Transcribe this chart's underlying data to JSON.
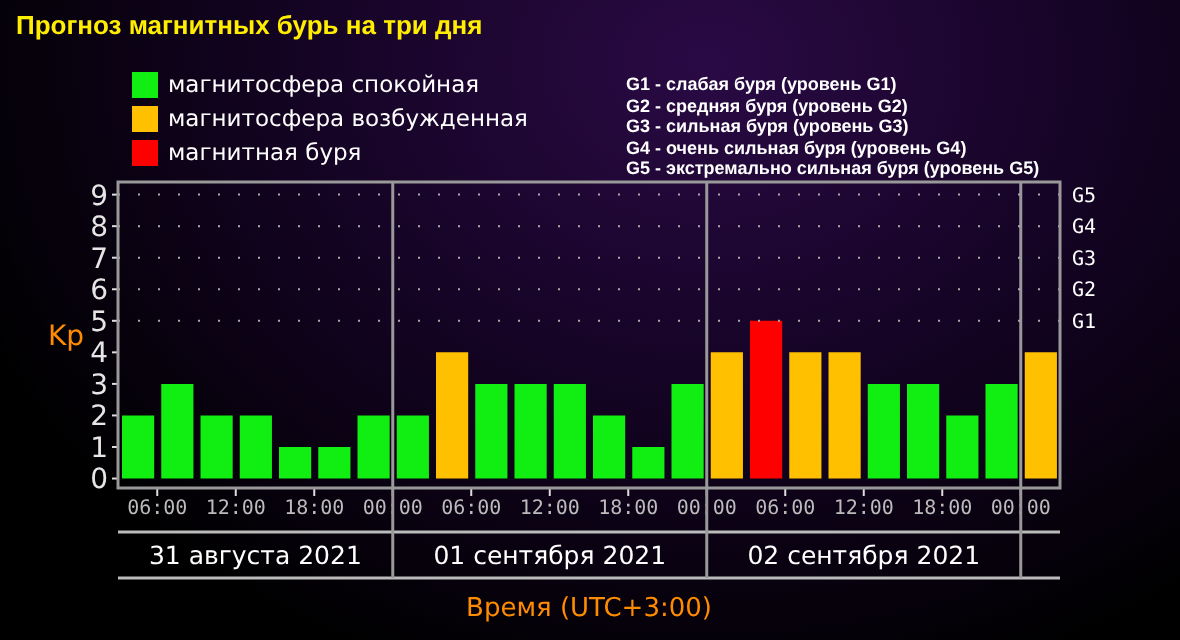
{
  "chart_data": {
    "type": "bar",
    "title": "Прогноз магнитных бурь на три дня",
    "xlabel": "Время (UTC+3:00)",
    "ylabel": "Kp",
    "x": [
      "2021-08-31T04:30",
      "2021-08-31T07:30",
      "2021-08-31T10:30",
      "2021-08-31T13:30",
      "2021-08-31T16:30",
      "2021-08-31T19:30",
      "2021-08-31T22:30",
      "2021-09-01T01:30",
      "2021-09-01T04:30",
      "2021-09-01T07:30",
      "2021-09-01T10:30",
      "2021-09-01T13:30",
      "2021-09-01T16:30",
      "2021-09-01T19:30",
      "2021-09-01T22:30",
      "2021-09-02T01:30",
      "2021-09-02T04:30",
      "2021-09-02T07:30",
      "2021-09-02T10:30",
      "2021-09-02T13:30",
      "2021-09-02T16:30",
      "2021-09-02T19:30",
      "2021-09-02T22:30",
      "2021-09-03T01:30"
    ],
    "stacked": true,
    "series": [
      {
        "name": "магнитосфера спокойная",
        "color": "#11ee11",
        "values": [
          2,
          3,
          2,
          2,
          1,
          1,
          2,
          2,
          null,
          3,
          3,
          3,
          2,
          1,
          3,
          null,
          null,
          null,
          null,
          3,
          3,
          2,
          3,
          null
        ]
      },
      {
        "name": "магнитосфера возбужденная",
        "color": "#ffc000",
        "values": [
          null,
          null,
          null,
          null,
          null,
          null,
          null,
          null,
          4,
          null,
          null,
          null,
          null,
          null,
          null,
          4,
          null,
          4,
          4,
          null,
          null,
          null,
          null,
          4
        ]
      },
      {
        "name": "магнитная буря",
        "color": "#ff0000",
        "values": [
          null,
          null,
          null,
          null,
          null,
          null,
          null,
          null,
          null,
          null,
          null,
          null,
          null,
          null,
          null,
          null,
          5,
          null,
          null,
          null,
          null,
          null,
          null,
          null
        ]
      }
    ],
    "xlim": [
      "2021-08-31T03:00",
      "2021-09-03T03:00"
    ],
    "xticks": [
      {
        "value": "2021-08-31T06:00",
        "label": "06:00"
      },
      {
        "value": "2021-08-31T12:00",
        "label": "12:00"
      },
      {
        "value": "2021-08-31T18:00",
        "label": "18:00"
      },
      {
        "value": "2021-09-01T00:00",
        "label": "00:00"
      },
      {
        "value": "2021-09-01T06:00",
        "label": "06:00"
      },
      {
        "value": "2021-09-01T12:00",
        "label": "12:00"
      },
      {
        "value": "2021-09-01T18:00",
        "label": "18:00"
      },
      {
        "value": "2021-09-02T00:00",
        "label": "00:00"
      },
      {
        "value": "2021-09-02T06:00",
        "label": "06:00"
      },
      {
        "value": "2021-09-02T12:00",
        "label": "12:00"
      },
      {
        "value": "2021-09-02T18:00",
        "label": "18:00"
      },
      {
        "value": "2021-09-03T00:00",
        "label": "00:00"
      }
    ],
    "ylim": [
      -0.3,
      9.4
    ],
    "yticks": [
      0,
      1,
      2,
      3,
      4,
      5,
      6,
      7,
      8,
      9
    ],
    "legend": "top left",
    "ref_lines": [
      {
        "axis": "x",
        "value": "2021-09-01T00:00",
        "color": "#999999"
      },
      {
        "axis": "x",
        "value": "2021-09-02T00:00",
        "color": "#999999"
      },
      {
        "axis": "x",
        "value": "2021-09-03T00:00",
        "color": "#999999"
      },
      {
        "axis": "y",
        "value": 5,
        "label": "G1",
        "color": "#aaaaaa",
        "line_style": "dotted"
      },
      {
        "axis": "y",
        "value": 6,
        "label": "G2",
        "color": "#aaaaaa",
        "line_style": "dotted"
      },
      {
        "axis": "y",
        "value": 7,
        "label": "G3",
        "color": "#aaaaaa",
        "line_style": "dotted"
      },
      {
        "axis": "y",
        "value": 8,
        "label": "G4",
        "color": "#aaaaaa",
        "line_style": "dotted"
      },
      {
        "axis": "y",
        "value": 9,
        "label": "G5",
        "color": "#aaaaaa",
        "line_style": "dotted"
      }
    ],
    "annotations": [
      "G1 - слабая буря (уровень G1)",
      "G2 - средняя буря (уровень G2)",
      "G3 - сильная буря (уровень G3)",
      "G4 - очень сильная буря (уровень G4)",
      "G5 - экстремально сильная буря (уровень G5)",
      "31 августа 2021",
      "01 сентября 2021",
      "02 сентября 2021"
    ]
  }
}
